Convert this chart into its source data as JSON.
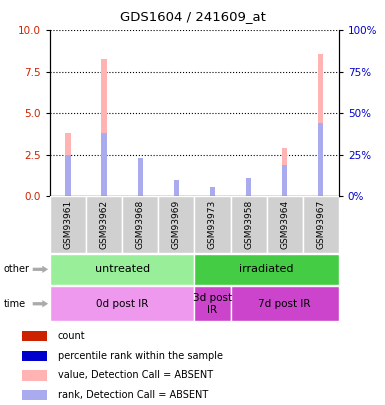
{
  "title": "GDS1604 / 241609_at",
  "samples": [
    "GSM93961",
    "GSM93962",
    "GSM93968",
    "GSM93969",
    "GSM93973",
    "GSM93958",
    "GSM93964",
    "GSM93967"
  ],
  "value_bars": [
    3.8,
    8.3,
    2.3,
    1.0,
    0.55,
    1.1,
    2.9,
    8.6
  ],
  "rank_bars": [
    2.5,
    3.8,
    2.3,
    1.0,
    0.55,
    1.1,
    1.9,
    4.4
  ],
  "value_bar_color": "#ffb3b3",
  "rank_bar_color": "#aaaaee",
  "ylim_left": [
    0,
    10
  ],
  "ylim_right": [
    0,
    100
  ],
  "yticks_left": [
    0,
    2.5,
    5.0,
    7.5,
    10
  ],
  "yticks_right": [
    0,
    25,
    50,
    75,
    100
  ],
  "groups_other": [
    {
      "label": "untreated",
      "start": 0,
      "end": 4,
      "color": "#99ee99"
    },
    {
      "label": "irradiated",
      "start": 4,
      "end": 8,
      "color": "#44cc44"
    }
  ],
  "groups_time": [
    {
      "label": "0d post IR",
      "start": 0,
      "end": 4,
      "color": "#ee99ee"
    },
    {
      "label": "3d post\nIR",
      "start": 4,
      "end": 5,
      "color": "#cc44cc"
    },
    {
      "label": "7d post IR",
      "start": 5,
      "end": 8,
      "color": "#cc44cc"
    }
  ],
  "left_label_color": "#cc2200",
  "right_label_color": "#0000cc",
  "bar_width": 0.15,
  "legend_colors": [
    "#cc2200",
    "#0000cc",
    "#ffb3b3",
    "#aaaaee"
  ],
  "legend_labels": [
    "count",
    "percentile rank within the sample",
    "value, Detection Call = ABSENT",
    "rank, Detection Call = ABSENT"
  ]
}
